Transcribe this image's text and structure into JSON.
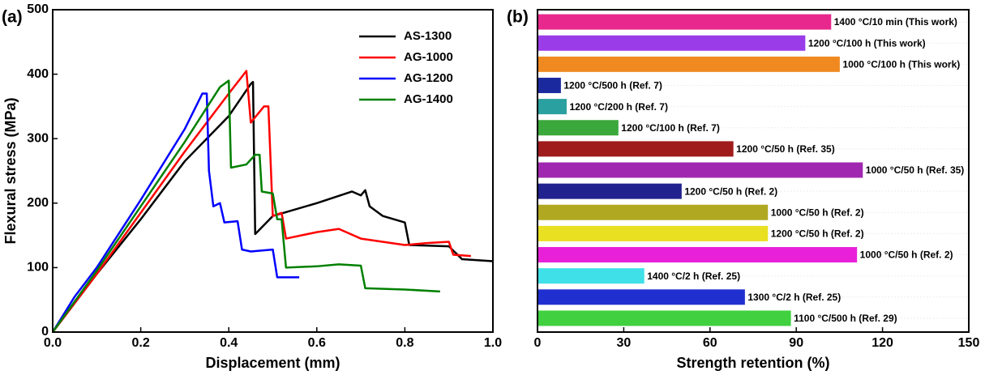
{
  "chart_data": [
    {
      "type": "line",
      "panel_label": "(a)",
      "xlabel": "Displacement (mm)",
      "ylabel": "Flexural stress (MPa)",
      "xlim": [
        0,
        1
      ],
      "ylim": [
        0,
        500
      ],
      "xticks": [
        {
          "value": 0,
          "label": "0.0"
        },
        0.2,
        0.4,
        0.6,
        0.8,
        {
          "value": 1,
          "label": "1.0"
        }
      ],
      "yticks": [
        0,
        100,
        200,
        300,
        400,
        500
      ],
      "legend": "upper right",
      "series": [
        {
          "name": "AS-1300",
          "color": "#000000",
          "x": [
            0,
            0.1,
            0.2,
            0.3,
            0.4,
            0.45,
            0.455,
            0.46,
            0.5,
            0.6,
            0.68,
            0.7,
            0.71,
            0.72,
            0.75,
            0.8,
            0.81,
            0.9,
            0.93,
            1.0
          ],
          "values": [
            0,
            90,
            175,
            265,
            335,
            385,
            388,
            152,
            180,
            200,
            218,
            212,
            220,
            195,
            180,
            170,
            135,
            133,
            113,
            110
          ]
        },
        {
          "name": "AG-1000",
          "color": "#ff0000",
          "x": [
            0,
            0.1,
            0.2,
            0.3,
            0.4,
            0.44,
            0.45,
            0.48,
            0.49,
            0.5,
            0.52,
            0.53,
            0.6,
            0.65,
            0.7,
            0.8,
            0.85,
            0.9,
            0.91,
            0.95
          ],
          "values": [
            0,
            90,
            185,
            280,
            370,
            405,
            325,
            350,
            350,
            180,
            185,
            145,
            155,
            160,
            145,
            135,
            138,
            140,
            120,
            118
          ]
        },
        {
          "name": "AG-1200",
          "color": "#0000ff",
          "x": [
            0,
            0.05,
            0.1,
            0.2,
            0.3,
            0.34,
            0.35,
            0.355,
            0.365,
            0.38,
            0.39,
            0.42,
            0.43,
            0.45,
            0.5,
            0.51,
            0.56
          ],
          "values": [
            0,
            55,
            100,
            205,
            315,
            370,
            370,
            250,
            195,
            200,
            170,
            172,
            128,
            125,
            128,
            85,
            85
          ]
        },
        {
          "name": "AG-1400",
          "color": "#008000",
          "x": [
            0,
            0.1,
            0.2,
            0.3,
            0.38,
            0.4,
            0.405,
            0.44,
            0.46,
            0.47,
            0.475,
            0.5,
            0.51,
            0.52,
            0.53,
            0.6,
            0.65,
            0.7,
            0.71,
            0.8,
            0.88
          ],
          "values": [
            0,
            95,
            195,
            295,
            380,
            390,
            255,
            260,
            275,
            275,
            218,
            215,
            175,
            175,
            100,
            102,
            105,
            103,
            68,
            66,
            63
          ]
        }
      ]
    },
    {
      "type": "barh",
      "panel_label": "(b)",
      "xlabel": "Strength retention (%)",
      "xlim": [
        0,
        150
      ],
      "xticks": [
        0,
        30,
        60,
        90,
        120,
        150
      ],
      "categories": [
        "1400 °C/10 min (This work)",
        "1200 °C/100 h (This work)",
        "1000 °C/100 h (This work)",
        "1200 °C/500 h (Ref. 7)",
        "1200 °C/200 h (Ref. 7)",
        "1200 °C/100 h (Ref. 7)",
        "1200 °C/50 h (Ref. 35)",
        "1000 °C/50 h (Ref. 35)",
        "1200 °C/50 h (Ref. 2)",
        "1000 °C/50 h (Ref. 2)",
        "1200 °C/50 h (Ref. 2)",
        "1000 °C/50 h (Ref. 2)",
        "1400 °C/2 h (Ref. 25)",
        "1300 °C/2 h (Ref. 25)",
        "1100 °C/500 h (Ref. 29)"
      ],
      "values": [
        102,
        93,
        105,
        8,
        10,
        28,
        68,
        113,
        50,
        80,
        80,
        111,
        37,
        72,
        88
      ],
      "colors": [
        "#e8288c",
        "#9a3ce8",
        "#f08a20",
        "#1a2a9e",
        "#2aa0a0",
        "#3aa83a",
        "#a01c1c",
        "#a028b0",
        "#22228e",
        "#b0a820",
        "#e8e020",
        "#e820d8",
        "#40e0e8",
        "#2030d0",
        "#40d040"
      ]
    }
  ]
}
